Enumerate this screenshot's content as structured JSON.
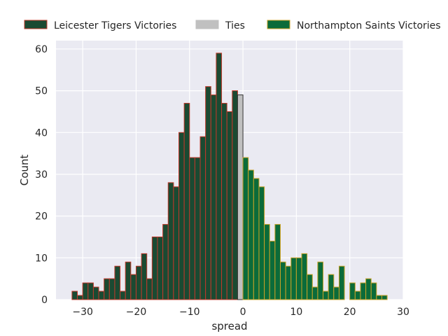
{
  "chart_data": {
    "type": "bar",
    "title": "",
    "xlabel": "spread",
    "ylabel": "Count",
    "xlim": [
      -35,
      30
    ],
    "ylim": [
      0,
      62
    ],
    "xticks": [
      -30,
      -20,
      -10,
      0,
      10,
      20,
      30
    ],
    "xtick_labels": [
      "−30",
      "−20",
      "−10",
      "0",
      "10",
      "20",
      "30"
    ],
    "yticks": [
      0,
      10,
      20,
      30,
      40,
      50,
      60
    ],
    "ytick_labels": [
      "0",
      "10",
      "20",
      "30",
      "40",
      "50",
      "60"
    ],
    "grid": true,
    "legend_position": "top, above plot",
    "series": [
      {
        "name": "Leicester Tigers Victories",
        "fill": "#1a4a32",
        "edge": "#c0392b",
        "bins": [
          [
            -32,
            2
          ],
          [
            -31,
            1
          ],
          [
            -30,
            4
          ],
          [
            -29,
            4
          ],
          [
            -28,
            3
          ],
          [
            -27,
            2
          ],
          [
            -26,
            5
          ],
          [
            -25,
            5
          ],
          [
            -24,
            8
          ],
          [
            -23,
            2
          ],
          [
            -22,
            9
          ],
          [
            -21,
            6
          ],
          [
            -20,
            8
          ],
          [
            -19,
            11
          ],
          [
            -18,
            5
          ],
          [
            -17,
            15
          ],
          [
            -16,
            15
          ],
          [
            -15,
            18
          ],
          [
            -14,
            28
          ],
          [
            -13,
            27
          ],
          [
            -12,
            40
          ],
          [
            -11,
            47
          ],
          [
            -10,
            34
          ],
          [
            -9,
            34
          ],
          [
            -8,
            39
          ],
          [
            -7,
            51
          ],
          [
            -6,
            49
          ],
          [
            -5,
            59
          ],
          [
            -4,
            47
          ],
          [
            -3,
            45
          ],
          [
            -2,
            50
          ]
        ]
      },
      {
        "name": "Ties",
        "fill": "#c0c0c0",
        "edge": "#333333",
        "bins": [
          [
            -1,
            49
          ]
        ]
      },
      {
        "name": "Northampton Saints Victories",
        "fill": "#0b6b3a",
        "edge": "#c9a227",
        "bins": [
          [
            0,
            34
          ],
          [
            1,
            31
          ],
          [
            2,
            29
          ],
          [
            3,
            27
          ],
          [
            4,
            18
          ],
          [
            5,
            14
          ],
          [
            6,
            18
          ],
          [
            7,
            9
          ],
          [
            8,
            8
          ],
          [
            9,
            10
          ],
          [
            10,
            10
          ],
          [
            11,
            11
          ],
          [
            12,
            6
          ],
          [
            13,
            3
          ],
          [
            14,
            9
          ],
          [
            15,
            2
          ],
          [
            16,
            6
          ],
          [
            17,
            3
          ],
          [
            18,
            8
          ],
          [
            20,
            4
          ],
          [
            21,
            2
          ],
          [
            22,
            4
          ],
          [
            23,
            5
          ],
          [
            24,
            4
          ],
          [
            25,
            1
          ],
          [
            26,
            1
          ]
        ]
      }
    ]
  }
}
